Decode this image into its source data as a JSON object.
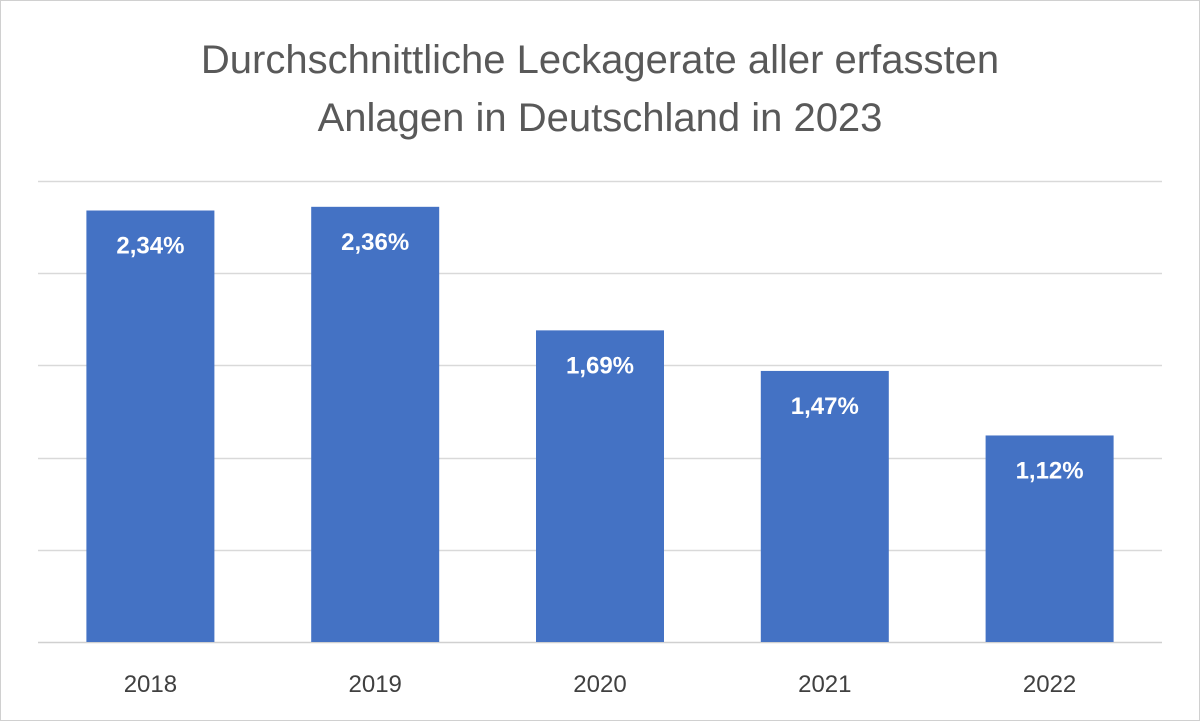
{
  "chart_data": {
    "type": "bar",
    "title": "Durchschnittliche Leckagerate aller erfassten Anlagen in Deutschland in 2023",
    "title_lines": [
      "Durchschnittliche Leckagerate aller erfassten",
      "Anlagen in Deutschland in 2023"
    ],
    "categories": [
      "2018",
      "2019",
      "2020",
      "2021",
      "2022"
    ],
    "values": [
      2.34,
      2.36,
      1.69,
      1.47,
      1.12
    ],
    "data_labels": [
      "2,34%",
      "2,36%",
      "1,69%",
      "1,47%",
      "1,12%"
    ],
    "unit": "%",
    "xlabel": "",
    "ylabel": "",
    "ylim": [
      0,
      2.5
    ],
    "y_axis_labels_shown": false,
    "grid": true,
    "legend": "none",
    "colors": {
      "bar": "#4472C4",
      "grid": "#d9d9d9",
      "title": "#595959",
      "tick_label": "#404040",
      "data_label": "#ffffff"
    }
  }
}
